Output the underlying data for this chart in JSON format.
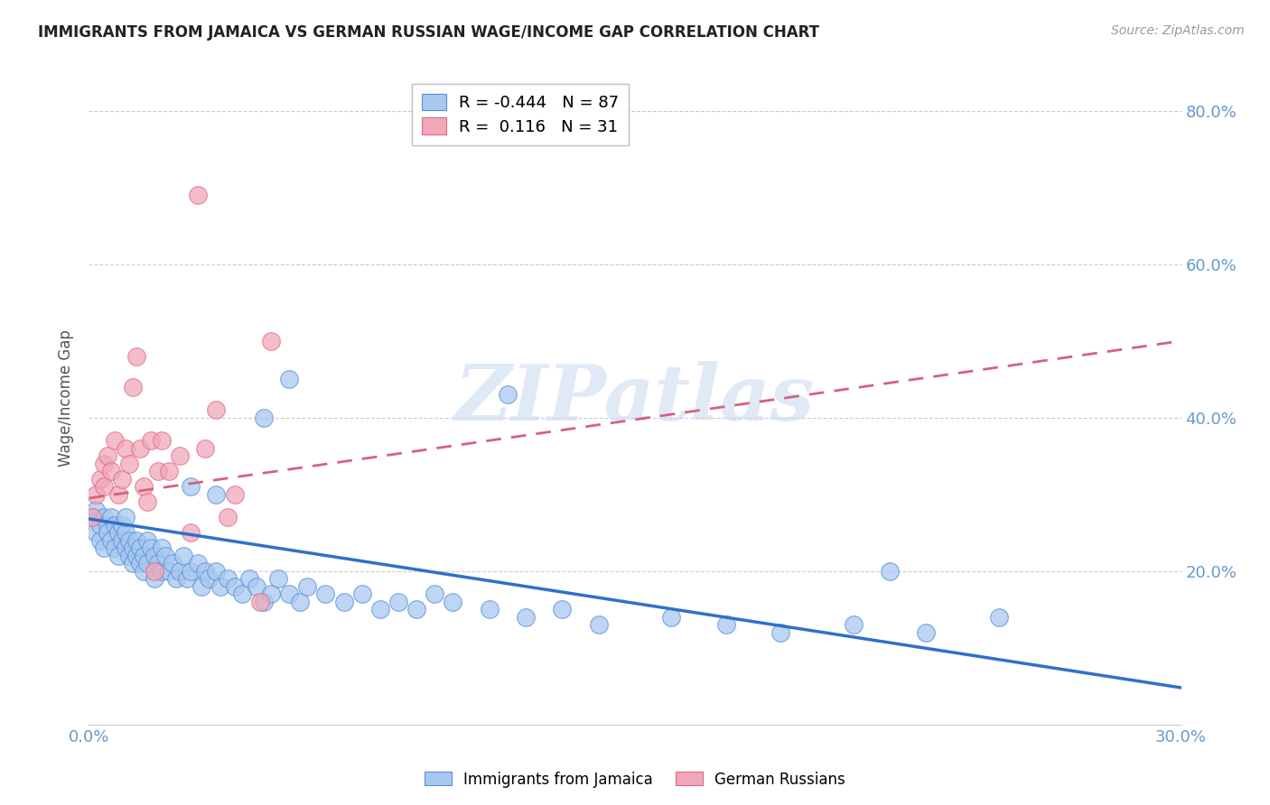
{
  "title": "IMMIGRANTS FROM JAMAICA VS GERMAN RUSSIAN WAGE/INCOME GAP CORRELATION CHART",
  "source": "Source: ZipAtlas.com",
  "ylabel": "Wage/Income Gap",
  "xlim": [
    0.0,
    0.3
  ],
  "ylim": [
    0.0,
    0.85
  ],
  "ytick_values": [
    0.0,
    0.2,
    0.4,
    0.6,
    0.8
  ],
  "ytick_labels": [
    "",
    "20.0%",
    "40.0%",
    "60.0%",
    "80.0%"
  ],
  "xtick_values": [
    0.0,
    0.05,
    0.1,
    0.15,
    0.2,
    0.25,
    0.3
  ],
  "xtick_labels": [
    "0.0%",
    "",
    "",
    "",
    "",
    "",
    "30.0%"
  ],
  "legend_blue_label": "Immigrants from Jamaica",
  "legend_pink_label": "German Russians",
  "legend_blue_r": "-0.444",
  "legend_blue_n": "87",
  "legend_pink_r": "0.116",
  "legend_pink_n": "31",
  "blue_color": "#a8c8f0",
  "pink_color": "#f0a8b8",
  "blue_edge_color": "#5590d8",
  "pink_edge_color": "#e06888",
  "blue_line_color": "#3070c8",
  "pink_line_color": "#d86080",
  "watermark_color": "#c8d8f0",
  "background_color": "#ffffff",
  "grid_color": "#cccccc",
  "title_color": "#222222",
  "right_axis_color": "#6699cc",
  "blue_scatter_x": [
    0.001,
    0.002,
    0.002,
    0.003,
    0.003,
    0.004,
    0.004,
    0.005,
    0.005,
    0.006,
    0.006,
    0.007,
    0.007,
    0.008,
    0.008,
    0.009,
    0.009,
    0.01,
    0.01,
    0.01,
    0.011,
    0.011,
    0.012,
    0.012,
    0.013,
    0.013,
    0.014,
    0.014,
    0.015,
    0.015,
    0.016,
    0.016,
    0.017,
    0.018,
    0.018,
    0.019,
    0.02,
    0.02,
    0.021,
    0.022,
    0.023,
    0.024,
    0.025,
    0.026,
    0.027,
    0.028,
    0.03,
    0.031,
    0.032,
    0.033,
    0.035,
    0.036,
    0.038,
    0.04,
    0.042,
    0.044,
    0.046,
    0.048,
    0.05,
    0.052,
    0.055,
    0.058,
    0.06,
    0.065,
    0.07,
    0.075,
    0.08,
    0.085,
    0.09,
    0.095,
    0.1,
    0.11,
    0.12,
    0.13,
    0.14,
    0.16,
    0.175,
    0.19,
    0.21,
    0.23,
    0.115,
    0.055,
    0.035,
    0.028,
    0.048,
    0.22,
    0.25
  ],
  "blue_scatter_y": [
    0.27,
    0.25,
    0.28,
    0.26,
    0.24,
    0.27,
    0.23,
    0.26,
    0.25,
    0.27,
    0.24,
    0.26,
    0.23,
    0.25,
    0.22,
    0.24,
    0.26,
    0.25,
    0.23,
    0.27,
    0.22,
    0.24,
    0.23,
    0.21,
    0.22,
    0.24,
    0.23,
    0.21,
    0.22,
    0.2,
    0.24,
    0.21,
    0.23,
    0.22,
    0.19,
    0.21,
    0.2,
    0.23,
    0.22,
    0.2,
    0.21,
    0.19,
    0.2,
    0.22,
    0.19,
    0.2,
    0.21,
    0.18,
    0.2,
    0.19,
    0.2,
    0.18,
    0.19,
    0.18,
    0.17,
    0.19,
    0.18,
    0.16,
    0.17,
    0.19,
    0.17,
    0.16,
    0.18,
    0.17,
    0.16,
    0.17,
    0.15,
    0.16,
    0.15,
    0.17,
    0.16,
    0.15,
    0.14,
    0.15,
    0.13,
    0.14,
    0.13,
    0.12,
    0.13,
    0.12,
    0.43,
    0.45,
    0.3,
    0.31,
    0.4,
    0.2,
    0.14
  ],
  "pink_scatter_x": [
    0.001,
    0.002,
    0.003,
    0.004,
    0.004,
    0.005,
    0.006,
    0.007,
    0.008,
    0.009,
    0.01,
    0.011,
    0.012,
    0.013,
    0.014,
    0.015,
    0.016,
    0.017,
    0.018,
    0.019,
    0.02,
    0.022,
    0.025,
    0.028,
    0.03,
    0.032,
    0.035,
    0.038,
    0.04,
    0.047,
    0.05
  ],
  "pink_scatter_y": [
    0.27,
    0.3,
    0.32,
    0.34,
    0.31,
    0.35,
    0.33,
    0.37,
    0.3,
    0.32,
    0.36,
    0.34,
    0.44,
    0.48,
    0.36,
    0.31,
    0.29,
    0.37,
    0.2,
    0.33,
    0.37,
    0.33,
    0.35,
    0.25,
    0.69,
    0.36,
    0.41,
    0.27,
    0.3,
    0.16,
    0.5
  ],
  "blue_line_x0": 0.0,
  "blue_line_y0": 0.268,
  "blue_line_x1": 0.3,
  "blue_line_y1": 0.048,
  "pink_line_x0": 0.0,
  "pink_line_y0": 0.295,
  "pink_line_x1": 0.3,
  "pink_line_y1": 0.5
}
